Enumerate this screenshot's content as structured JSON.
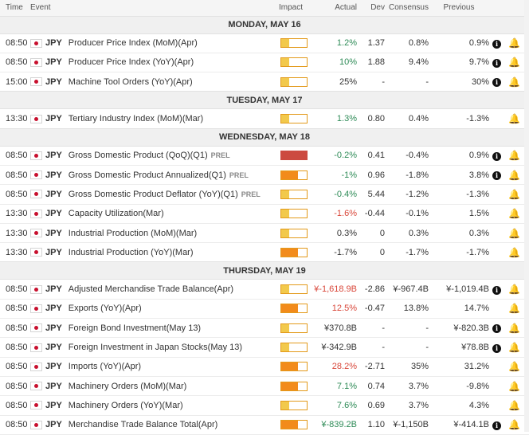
{
  "header": {
    "time": "Time",
    "event": "Event",
    "impact": "Impact",
    "actual": "Actual",
    "dev": "Dev",
    "consensus": "Consensus",
    "previous": "Previous"
  },
  "icons": {
    "info": "info-circle-icon",
    "bell": "bell-icon",
    "flag": "japan-flag-icon"
  },
  "colors": {
    "positive": "#2e8b57",
    "negative": "#d9473a",
    "impact_medium": "#f28b1b",
    "impact_high": "#cc4a40"
  },
  "groups": [
    {
      "date": "MONDAY, MAY 16",
      "events": [
        {
          "time": "08:50",
          "currency": "JPY",
          "name": "Producer Price Index (MoM)(Apr)",
          "tag": "",
          "impact": "low",
          "actual": "1.2%",
          "actual_color": "green",
          "dev": "1.37",
          "consensus": "0.8%",
          "previous": "0.9%",
          "info": true
        },
        {
          "time": "08:50",
          "currency": "JPY",
          "name": "Producer Price Index (YoY)(Apr)",
          "tag": "",
          "impact": "low",
          "actual": "10%",
          "actual_color": "green",
          "dev": "1.88",
          "consensus": "9.4%",
          "previous": "9.7%",
          "info": true
        },
        {
          "time": "15:00",
          "currency": "JPY",
          "name": "Machine Tool Orders (YoY)(Apr)",
          "tag": "",
          "impact": "low",
          "actual": "25%",
          "actual_color": "black",
          "dev": "-",
          "consensus": "-",
          "previous": "30%",
          "info": true
        }
      ]
    },
    {
      "date": "TUESDAY, MAY 17",
      "events": [
        {
          "time": "13:30",
          "currency": "JPY",
          "name": "Tertiary Industry Index (MoM)(Mar)",
          "tag": "",
          "impact": "low",
          "actual": "1.3%",
          "actual_color": "green",
          "dev": "0.80",
          "consensus": "0.4%",
          "previous": "-1.3%",
          "info": false
        }
      ]
    },
    {
      "date": "WEDNESDAY, MAY 18",
      "events": [
        {
          "time": "08:50",
          "currency": "JPY",
          "name": "Gross Domestic Product (QoQ)(Q1)",
          "tag": "PREL",
          "impact": "high",
          "actual": "-0.2%",
          "actual_color": "green",
          "dev": "0.41",
          "consensus": "-0.4%",
          "previous": "0.9%",
          "info": true
        },
        {
          "time": "08:50",
          "currency": "JPY",
          "name": "Gross Domestic Product Annualized(Q1)",
          "tag": "PREL",
          "impact": "medium",
          "actual": "-1%",
          "actual_color": "green",
          "dev": "0.96",
          "consensus": "-1.8%",
          "previous": "3.8%",
          "info": true
        },
        {
          "time": "08:50",
          "currency": "JPY",
          "name": "Gross Domestic Product Deflator (YoY)(Q1)",
          "tag": "PREL",
          "impact": "low",
          "actual": "-0.4%",
          "actual_color": "green",
          "dev": "5.44",
          "consensus": "-1.2%",
          "previous": "-1.3%",
          "info": false
        },
        {
          "time": "13:30",
          "currency": "JPY",
          "name": "Capacity Utilization(Mar)",
          "tag": "",
          "impact": "low",
          "actual": "-1.6%",
          "actual_color": "red",
          "dev": "-0.44",
          "consensus": "-0.1%",
          "previous": "1.5%",
          "info": false
        },
        {
          "time": "13:30",
          "currency": "JPY",
          "name": "Industrial Production (MoM)(Mar)",
          "tag": "",
          "impact": "low",
          "actual": "0.3%",
          "actual_color": "black",
          "dev": "0",
          "consensus": "0.3%",
          "previous": "0.3%",
          "info": false
        },
        {
          "time": "13:30",
          "currency": "JPY",
          "name": "Industrial Production (YoY)(Mar)",
          "tag": "",
          "impact": "medium",
          "actual": "-1.7%",
          "actual_color": "black",
          "dev": "0",
          "consensus": "-1.7%",
          "previous": "-1.7%",
          "info": false
        }
      ]
    },
    {
      "date": "THURSDAY, MAY 19",
      "events": [
        {
          "time": "08:50",
          "currency": "JPY",
          "name": "Adjusted Merchandise Trade Balance(Apr)",
          "tag": "",
          "impact": "low",
          "actual": "¥-1,618.9B",
          "actual_color": "red",
          "dev": "-2.86",
          "consensus": "¥-967.4B",
          "previous": "¥-1,019.4B",
          "info": true
        },
        {
          "time": "08:50",
          "currency": "JPY",
          "name": "Exports (YoY)(Apr)",
          "tag": "",
          "impact": "medium",
          "actual": "12.5%",
          "actual_color": "red",
          "dev": "-0.47",
          "consensus": "13.8%",
          "previous": "14.7%",
          "info": false
        },
        {
          "time": "08:50",
          "currency": "JPY",
          "name": "Foreign Bond Investment(May 13)",
          "tag": "",
          "impact": "low",
          "actual": "¥370.8B",
          "actual_color": "black",
          "dev": "-",
          "consensus": "-",
          "previous": "¥-820.3B",
          "info": true
        },
        {
          "time": "08:50",
          "currency": "JPY",
          "name": "Foreign Investment in Japan Stocks(May 13)",
          "tag": "",
          "impact": "low",
          "actual": "¥-342.9B",
          "actual_color": "black",
          "dev": "-",
          "consensus": "-",
          "previous": "¥78.8B",
          "info": true
        },
        {
          "time": "08:50",
          "currency": "JPY",
          "name": "Imports (YoY)(Apr)",
          "tag": "",
          "impact": "medium",
          "actual": "28.2%",
          "actual_color": "red",
          "dev": "-2.71",
          "consensus": "35%",
          "previous": "31.2%",
          "info": false
        },
        {
          "time": "08:50",
          "currency": "JPY",
          "name": "Machinery Orders (MoM)(Mar)",
          "tag": "",
          "impact": "medium",
          "actual": "7.1%",
          "actual_color": "green",
          "dev": "0.74",
          "consensus": "3.7%",
          "previous": "-9.8%",
          "info": false
        },
        {
          "time": "08:50",
          "currency": "JPY",
          "name": "Machinery Orders (YoY)(Mar)",
          "tag": "",
          "impact": "low",
          "actual": "7.6%",
          "actual_color": "green",
          "dev": "0.69",
          "consensus": "3.7%",
          "previous": "4.3%",
          "info": false
        },
        {
          "time": "08:50",
          "currency": "JPY",
          "name": "Merchandise Trade Balance Total(Apr)",
          "tag": "",
          "impact": "medium",
          "actual": "¥-839.2B",
          "actual_color": "green",
          "dev": "1.10",
          "consensus": "¥-1,150B",
          "previous": "¥-414.1B",
          "info": true
        }
      ]
    }
  ]
}
